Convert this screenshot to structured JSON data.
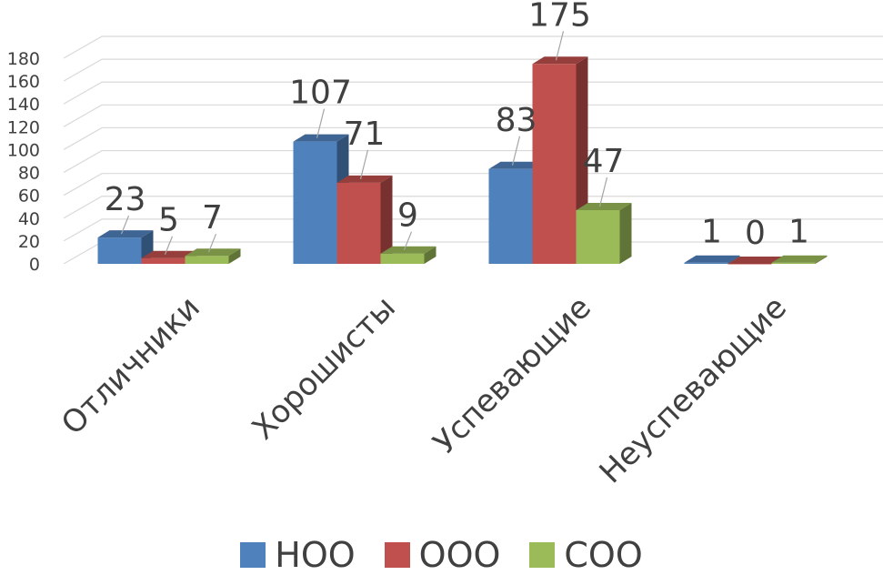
{
  "chart_data": {
    "type": "bar",
    "categories": [
      "Отличники",
      "Хорошисты",
      "Успевающие",
      "Неуспевающие"
    ],
    "series": [
      {
        "name": "НОО",
        "values": [
          23,
          107,
          83,
          1
        ],
        "color": "#4F81BD"
      },
      {
        "name": "ООО",
        "values": [
          5,
          71,
          175,
          0
        ],
        "color": "#C0504D"
      },
      {
        "name": "СОО",
        "values": [
          7,
          9,
          47,
          1
        ],
        "color": "#9BBB59"
      }
    ],
    "y_ticks": [
      "0",
      "20",
      "40",
      "60",
      "80",
      "100",
      "120",
      "140",
      "160",
      "180"
    ],
    "ylim": [
      0,
      180
    ],
    "grid": true,
    "legend_position": "bottom",
    "style": "3d-clustered-column"
  }
}
